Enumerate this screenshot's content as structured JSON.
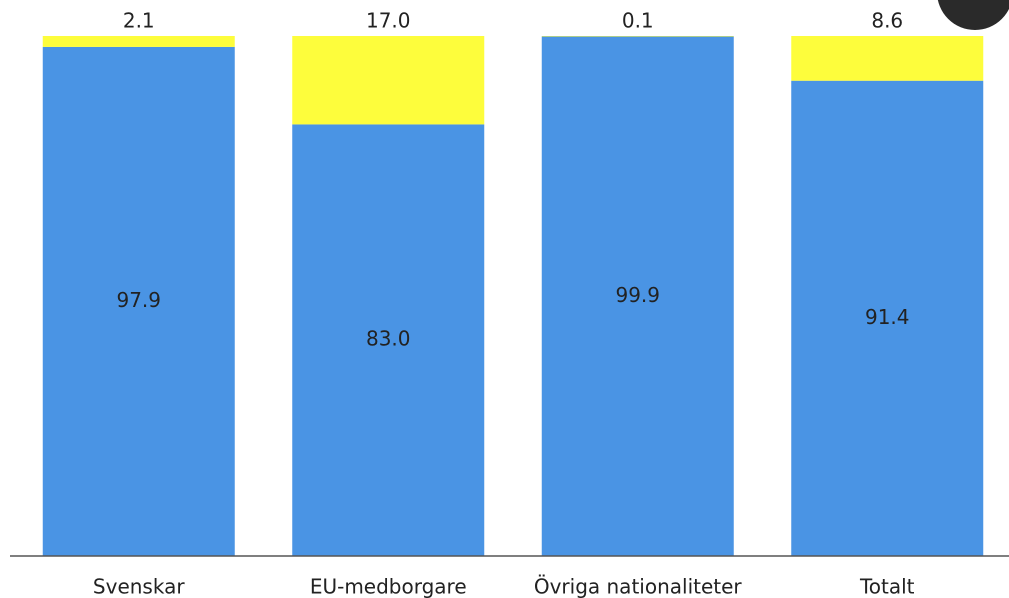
{
  "chart_data": {
    "type": "stacked-bar",
    "categories": [
      "Svenskar",
      "EU-medborgare",
      "Övriga nationaliteter",
      "Totalt"
    ],
    "series": [
      {
        "color": "#4a94e4",
        "values": [
          97.9,
          83.0,
          99.9,
          91.4
        ],
        "value_labels": [
          "97.9",
          "83.0",
          "99.9",
          "91.4"
        ]
      },
      {
        "color": "#fdfd3c",
        "values": [
          2.1,
          17.0,
          0.1,
          8.6
        ],
        "value_labels": [
          "2.1",
          "17.0",
          "0.1",
          "8.6"
        ]
      }
    ]
  }
}
